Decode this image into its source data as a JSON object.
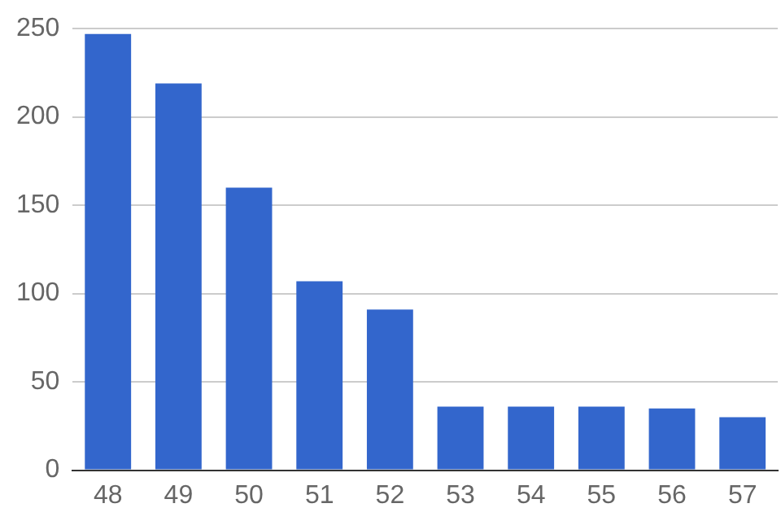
{
  "chart_data": {
    "type": "bar",
    "categories": [
      "48",
      "49",
      "50",
      "51",
      "52",
      "53",
      "54",
      "55",
      "56",
      "57"
    ],
    "values": [
      247,
      219,
      160,
      107,
      91,
      36,
      36,
      36,
      35,
      30
    ],
    "color": "#3366cc",
    "ylim": [
      0,
      250
    ],
    "yticks": [
      0,
      50,
      100,
      150,
      200,
      250
    ],
    "grid": "y",
    "legend": false
  }
}
